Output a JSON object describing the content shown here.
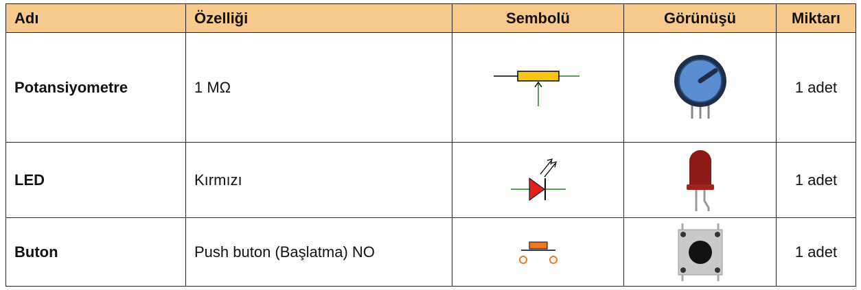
{
  "table": {
    "header": [
      "Adı",
      "Özelliği",
      "Sembolü",
      "Görünüşü",
      "Miktarı"
    ],
    "rows": [
      [
        "Potansiyometre",
        "1 MΩ",
        "1 adet"
      ],
      [
        "LED",
        "Kırmızı",
        "1 adet"
      ],
      [
        "Buton",
        "Push buton (Başlatma) NO",
        "1 adet"
      ]
    ]
  }
}
